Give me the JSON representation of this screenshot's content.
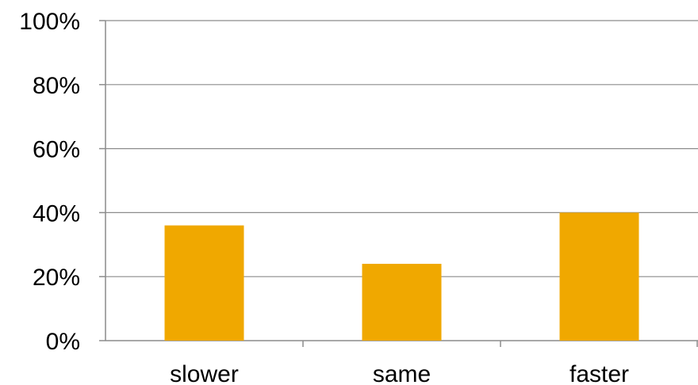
{
  "chart_data": {
    "type": "bar",
    "categories": [
      "slower",
      "same",
      "faster"
    ],
    "values": [
      36,
      24,
      40
    ],
    "ylim": [
      0,
      100
    ],
    "yticks": [
      "0%",
      "20%",
      "40%",
      "60%",
      "80%",
      "100%"
    ],
    "title": "",
    "xlabel": "",
    "ylabel": "",
    "grid": true,
    "legend": "none",
    "bar_color": "#f0a800"
  }
}
